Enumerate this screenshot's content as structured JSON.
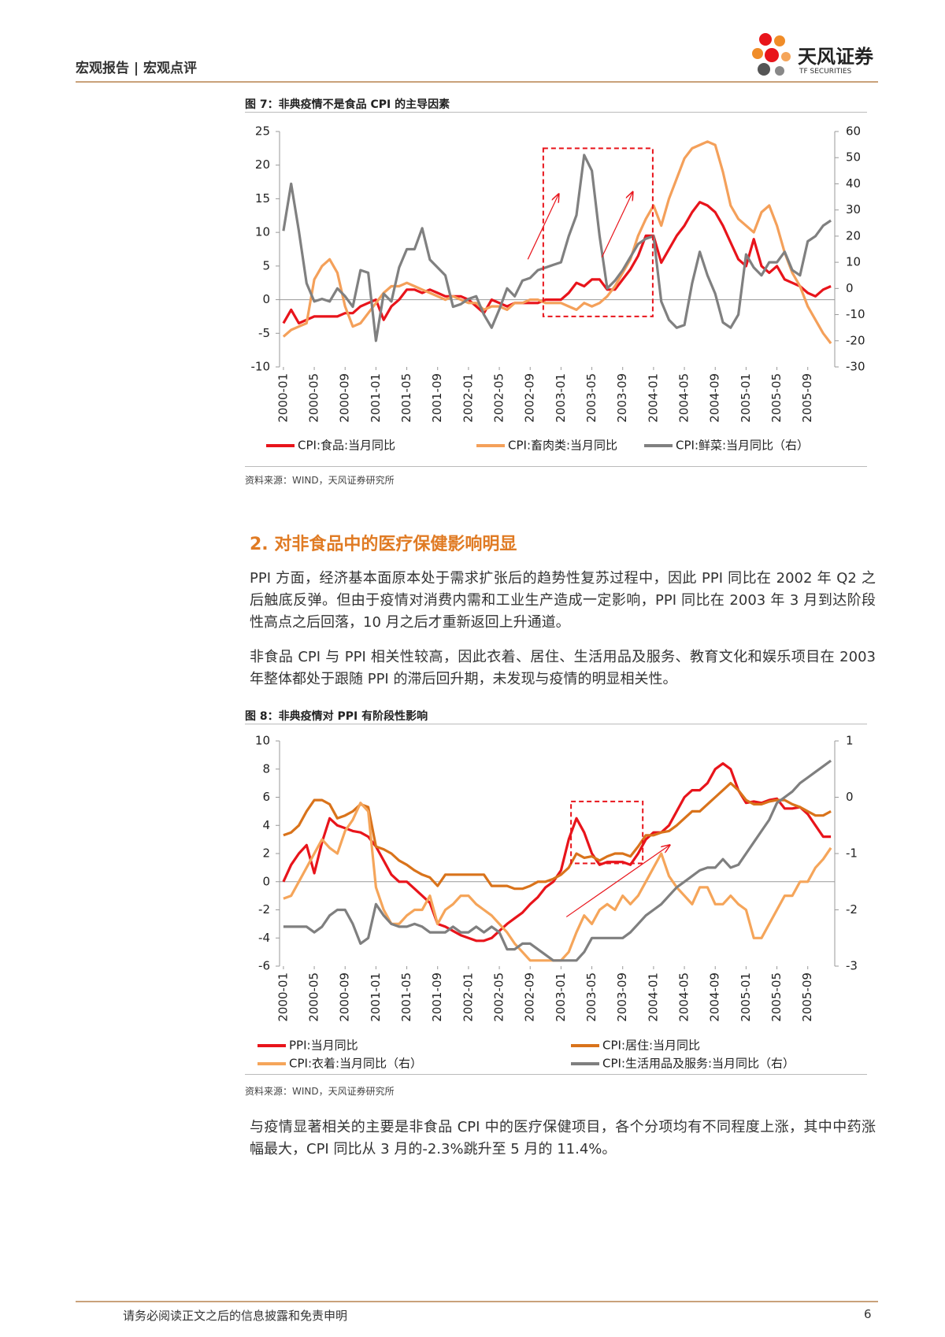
{
  "header": {
    "section": "宏观报告 | 宏观点评",
    "logo_name": "天风证券",
    "logo_sub": "TF SECURITIES"
  },
  "chart_data": [
    {
      "type": "line",
      "title": "图 7：非典疫情不是食品 CPI 的主导因素",
      "source": "资料来源：WIND，天风证券研究所",
      "categories": [
        "2000-01",
        null,
        null,
        null,
        "2000-05",
        null,
        null,
        null,
        "2000-09",
        null,
        null,
        null,
        "2001-01",
        null,
        null,
        null,
        "2001-05",
        null,
        null,
        null,
        "2001-09",
        null,
        null,
        null,
        "2002-01",
        null,
        null,
        null,
        "2002-05",
        null,
        null,
        null,
        "2002-09",
        null,
        null,
        null,
        "2003-01",
        null,
        null,
        null,
        "2003-05",
        null,
        null,
        null,
        "2003-09",
        null,
        null,
        null,
        "2004-01",
        null,
        null,
        null,
        "2004-05",
        null,
        null,
        null,
        "2004-09",
        null,
        null,
        null,
        "2005-01",
        null,
        null,
        null,
        "2005-05",
        null,
        null,
        null,
        "2005-09",
        null,
        null,
        null
      ],
      "ylim": [
        -10,
        25
      ],
      "yticks": [
        -10,
        -5,
        0,
        5,
        10,
        15,
        20,
        25
      ],
      "y2lim": [
        -30,
        60
      ],
      "y2ticks": [
        -30,
        -20,
        -10,
        0,
        10,
        20,
        30,
        40,
        50,
        60
      ],
      "legend": "bottom",
      "series": [
        {
          "name": "CPI:食品:当月同比",
          "color": "#e8141b",
          "values": [
            -3.5,
            -1.5,
            -3.5,
            -3,
            -2.5,
            -2.5,
            -2.5,
            -2.5,
            -2,
            -2,
            -1,
            -0.5,
            0,
            -3,
            -1,
            0,
            1.5,
            1.5,
            1,
            1.5,
            1,
            0.5,
            0.5,
            0.5,
            0,
            -1,
            -2,
            0,
            -0.5,
            -1,
            -0.5,
            -0.5,
            -0.5,
            -0.5,
            0,
            0,
            0,
            1,
            2.5,
            2,
            3,
            3,
            1.5,
            1.5,
            3,
            4.5,
            6.5,
            9.5,
            9.5,
            5.5,
            7.5,
            9.5,
            11,
            13,
            14.5,
            14,
            13,
            11,
            8.5,
            6,
            5,
            9,
            5,
            4,
            5,
            3,
            2.5,
            2,
            1,
            0.5,
            1.5,
            2
          ]
        },
        {
          "name": "CPI:畜肉类:当月同比",
          "color": "#f4a05a",
          "values": [
            -5.5,
            -4.5,
            -4,
            -3.5,
            3,
            5,
            6,
            4,
            -1,
            -4,
            -3.5,
            -2,
            -0.5,
            1,
            2,
            2,
            2.5,
            2,
            1.5,
            1,
            0.5,
            0,
            0.5,
            0,
            -0.5,
            -0.5,
            -1.5,
            -1,
            -1,
            -1.5,
            -0.5,
            -0.5,
            0,
            0,
            -0.5,
            -0.5,
            -0.5,
            -1,
            -1.5,
            -0.5,
            -1,
            -0.5,
            0.5,
            2,
            4,
            6,
            9.5,
            12,
            14,
            11,
            15,
            18,
            21,
            22.5,
            23,
            23.5,
            23,
            19,
            14,
            12,
            11,
            10,
            13,
            14,
            11,
            7,
            4,
            2,
            -1,
            -3,
            -5,
            -6.5
          ]
        },
        {
          "name": "CPI:鲜菜:当月同比（右）",
          "color": "#808080",
          "axis": "y2",
          "values": [
            22,
            40,
            22,
            2,
            -5,
            -4,
            -5,
            0,
            -3,
            -7,
            7,
            6,
            -20,
            -2,
            -5,
            8,
            15,
            15,
            23,
            11,
            8,
            5,
            -7,
            -6,
            -4,
            -3,
            -10,
            -15,
            -8,
            0,
            -3,
            3,
            4,
            7,
            8,
            9,
            10,
            20,
            28,
            51,
            45,
            20,
            0,
            3,
            7,
            12,
            17,
            19,
            20,
            -5,
            -12,
            -15,
            -14,
            2,
            14,
            5,
            -2,
            -13,
            -15,
            -10,
            13,
            8,
            5,
            10,
            10,
            14,
            7,
            5,
            18,
            20,
            24,
            26
          ]
        }
      ]
    },
    {
      "type": "line",
      "title": "图 8：非典疫情对 PPI 有阶段性影响",
      "source": "资料来源：WIND，天风证券研究所",
      "categories": [
        "2000-01",
        null,
        null,
        null,
        "2000-05",
        null,
        null,
        null,
        "2000-09",
        null,
        null,
        null,
        "2001-01",
        null,
        null,
        null,
        "2001-05",
        null,
        null,
        null,
        "2001-09",
        null,
        null,
        null,
        "2002-01",
        null,
        null,
        null,
        "2002-05",
        null,
        null,
        null,
        "2002-09",
        null,
        null,
        null,
        "2003-01",
        null,
        null,
        null,
        "2003-05",
        null,
        null,
        null,
        "2003-09",
        null,
        null,
        null,
        "2004-01",
        null,
        null,
        null,
        "2004-05",
        null,
        null,
        null,
        "2004-09",
        null,
        null,
        null,
        "2005-01",
        null,
        null,
        null,
        "2005-05",
        null,
        null,
        null,
        "2005-09",
        null,
        null,
        null
      ],
      "ylim": [
        -6,
        10
      ],
      "yticks": [
        -6,
        -4,
        -2,
        0,
        2,
        4,
        6,
        8,
        10
      ],
      "y2lim": [
        -3,
        1
      ],
      "y2ticks": [
        -3,
        -2,
        -1,
        0,
        1
      ],
      "legend": "bottom",
      "series": [
        {
          "name": "PPI:当月同比",
          "color": "#e8141b",
          "values": [
            0,
            1.2,
            2,
            2.6,
            0.6,
            2.8,
            4.5,
            4,
            3.8,
            3.6,
            3.5,
            3.2,
            2.5,
            1.5,
            0.5,
            0,
            0,
            -0.5,
            -1,
            -1.5,
            -3,
            -3.2,
            -3.5,
            -3.8,
            -4,
            -4.2,
            -4.2,
            -4,
            -3.5,
            -3,
            -2.6,
            -2.2,
            -1.6,
            -1.1,
            -0.4,
            0,
            0.8,
            3,
            4.5,
            3.5,
            2,
            1.2,
            1.4,
            1.4,
            1.4,
            1.2,
            2,
            3,
            3.5,
            3.5,
            4,
            5,
            6,
            6.5,
            6.5,
            7,
            8,
            8.4,
            8,
            6.5,
            5.6,
            5.7,
            5.6,
            5.8,
            5.9,
            5.2,
            5.2,
            5.3,
            4.8,
            4,
            3.2,
            3.2
          ]
        },
        {
          "name": "CPI:居住:当月同比",
          "color": "#d9731b",
          "values": [
            3.3,
            3.5,
            4,
            5,
            5.8,
            5.8,
            5.5,
            4.5,
            4.7,
            5,
            5.5,
            5.3,
            2.5,
            2.3,
            2,
            1.5,
            1.2,
            0.8,
            0.5,
            0.3,
            -0.3,
            0.5,
            0.5,
            0.5,
            0.5,
            0.5,
            0.5,
            -0.3,
            -0.3,
            -0.3,
            -0.5,
            -0.5,
            -0.3,
            0,
            0,
            0.2,
            0.5,
            1,
            2,
            1.7,
            1.8,
            1.5,
            1.8,
            2,
            2,
            1.8,
            2.5,
            3.3,
            3.3,
            3.5,
            3.6,
            4,
            4.5,
            5,
            5,
            5.5,
            6,
            6.5,
            7,
            6.5,
            5.8,
            5.5,
            5.5,
            5.7,
            5.8,
            5.8,
            5.5,
            5.3,
            5,
            4.7,
            4.7,
            5
          ]
        },
        {
          "name": "CPI:衣着:当月同比（右）",
          "color": "#f5a55a",
          "axis": "y2",
          "values": [
            -1.8,
            -1.75,
            -1.5,
            -1.25,
            -1,
            -0.75,
            -0.9,
            -1,
            -0.6,
            -0.4,
            -0.1,
            -0.25,
            -1.6,
            -2,
            -2.25,
            -2.25,
            -2.1,
            -2,
            -2,
            -1.75,
            -2.25,
            -2,
            -1.9,
            -1.75,
            -1.75,
            -1.9,
            -2,
            -2.1,
            -2.25,
            -2.4,
            -2.6,
            -2.75,
            -2.9,
            -2.9,
            -2.9,
            -2.9,
            -2.9,
            -2.75,
            -2.4,
            -2.1,
            -2.25,
            -2,
            -1.9,
            -2,
            -1.75,
            -1.9,
            -1.75,
            -1.5,
            -1.25,
            -1,
            -1.4,
            -1.6,
            -1.75,
            -1.9,
            -1.6,
            -1.6,
            -1.9,
            -1.9,
            -1.75,
            -1.9,
            -2,
            -2.5,
            -2.5,
            -2.25,
            -2,
            -1.75,
            -1.75,
            -1.5,
            -1.5,
            -1.25,
            -1.1,
            -0.9
          ]
        },
        {
          "name": "CPI:生活用品及服务:当月同比（右）",
          "color": "#7f7f7f",
          "axis": "y2",
          "values": [
            -2.3,
            -2.3,
            -2.3,
            -2.3,
            -2.4,
            -2.3,
            -2.1,
            -2,
            -2,
            -2.25,
            -2.6,
            -2.5,
            -1.9,
            -2.1,
            -2.25,
            -2.3,
            -2.3,
            -2.25,
            -2.3,
            -2.4,
            -2.4,
            -2.4,
            -2.3,
            -2.4,
            -2.4,
            -2.3,
            -2.4,
            -2.3,
            -2.4,
            -2.7,
            -2.7,
            -2.6,
            -2.6,
            -2.7,
            -2.8,
            -2.9,
            -2.9,
            -2.9,
            -2.9,
            -2.75,
            -2.5,
            -2.5,
            -2.5,
            -2.5,
            -2.5,
            -2.4,
            -2.25,
            -2.1,
            -2,
            -1.9,
            -1.75,
            -1.6,
            -1.5,
            -1.4,
            -1.3,
            -1.25,
            -1.25,
            -1.1,
            -1.25,
            -1.2,
            -1,
            -0.8,
            -0.6,
            -0.4,
            -0.1,
            0,
            0.1,
            0.25,
            0.35,
            0.45,
            0.55,
            0.65
          ]
        }
      ]
    }
  ],
  "section": {
    "heading": "2. 对非食品中的医疗保健影响明显",
    "paragraphs": [
      "PPI 方面，经济基本面原本处于需求扩张后的趋势性复苏过程中，因此 PPI 同比在 2002 年 Q2 之后触底反弹。但由于疫情对消费内需和工业生产造成一定影响，PPI 同比在 2003 年 3 月到达阶段性高点之后回落，10 月之后才重新返回上升通道。",
      "非食品 CPI 与 PPI 相关性较高，因此衣着、居住、生活用品及服务、教育文化和娱乐项目在 2003 年整体都处于跟随 PPI 的滞后回升期，未发现与疫情的明显相关性。"
    ]
  },
  "closing_paragraph": "与疫情显著相关的主要是非食品 CPI 中的医疗保健项目，各个分项均有不同程度上涨，其中中药涨幅最大，CPI 同比从 3 月的-2.3%跳升至 5 月的 11.4%。",
  "footer": {
    "disclaimer": "请务必阅读正文之后的信息披露和免责申明",
    "page": 6
  }
}
